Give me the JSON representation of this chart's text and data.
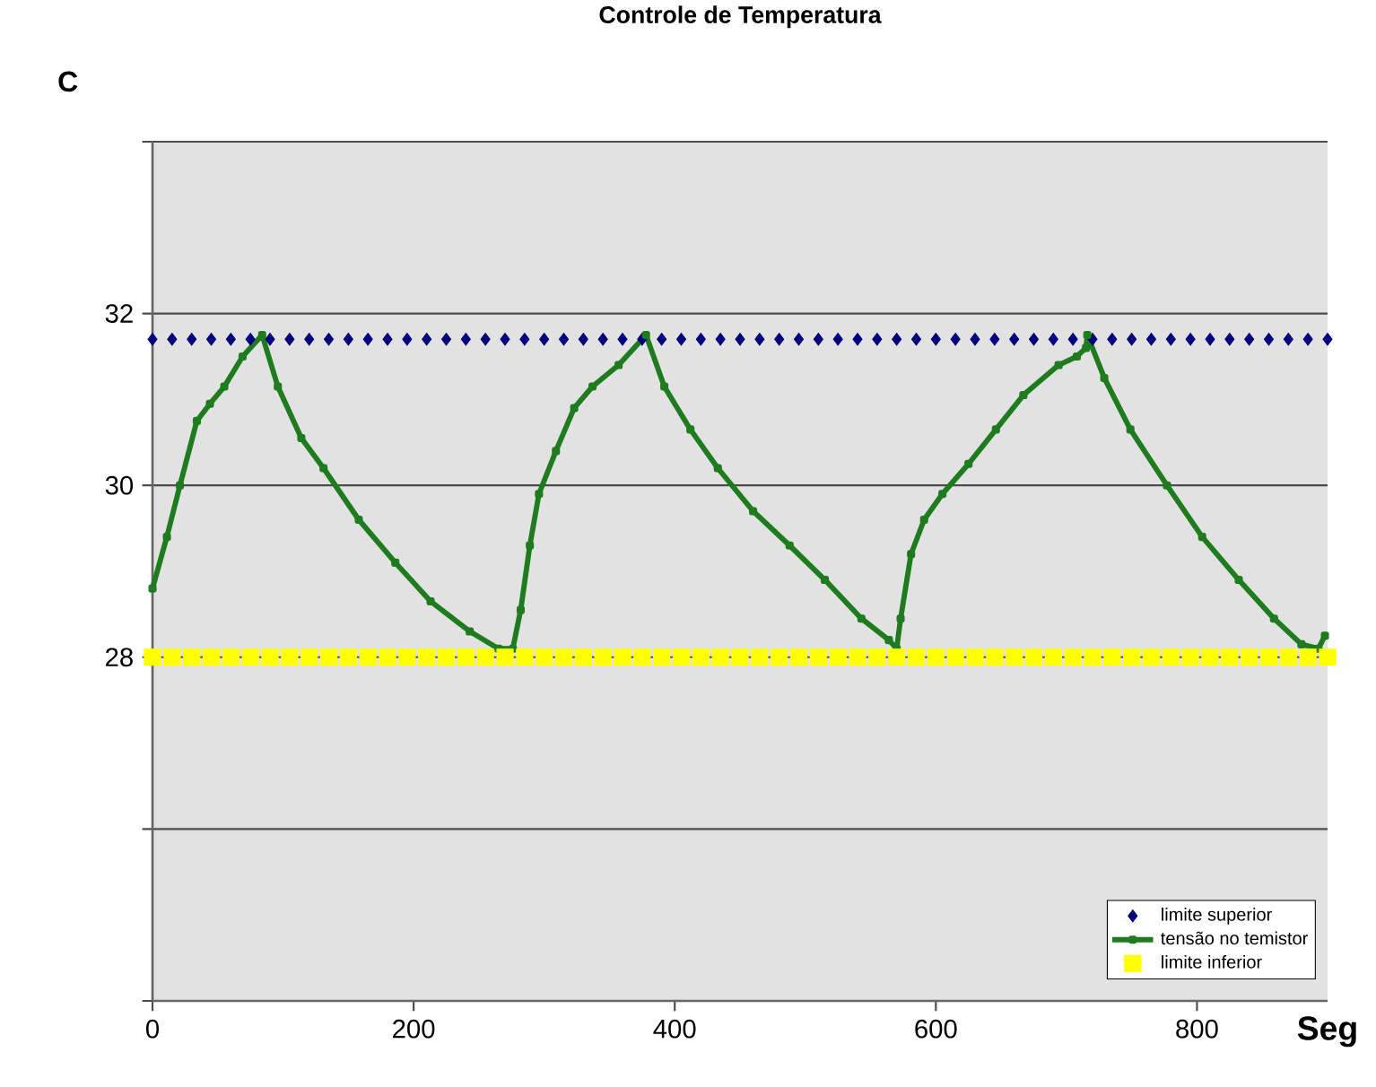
{
  "chart_data": {
    "type": "line",
    "title": "Controle de Temperatura",
    "xlabel": "Seg",
    "ylabel": "C",
    "xlim": [
      0,
      900
    ],
    "xticks": [
      0,
      200,
      400,
      600,
      800
    ],
    "ylim": [
      24,
      34
    ],
    "yticks": [
      {
        "value": 24,
        "label": null
      },
      {
        "value": 26,
        "label": null
      },
      28,
      30,
      32,
      {
        "value": 34,
        "label": null
      }
    ],
    "grid": "y",
    "legend": "bottom right",
    "series": [
      {
        "name": "limite superior",
        "type": "scatter",
        "marker": "diamond",
        "color": "#000080",
        "x": [
          0,
          15,
          30,
          45,
          60,
          75,
          90,
          105,
          120,
          135,
          150,
          165,
          180,
          195,
          210,
          225,
          240,
          255,
          270,
          285,
          300,
          315,
          330,
          345,
          360,
          375,
          390,
          405,
          420,
          435,
          450,
          465,
          480,
          495,
          510,
          525,
          540,
          555,
          570,
          585,
          600,
          615,
          630,
          645,
          660,
          675,
          690,
          705,
          720,
          735,
          750,
          765,
          780,
          795,
          810,
          825,
          840,
          855,
          870,
          885,
          900
        ],
        "values": [
          31.7,
          31.7,
          31.7,
          31.7,
          31.7,
          31.7,
          31.7,
          31.7,
          31.7,
          31.7,
          31.7,
          31.7,
          31.7,
          31.7,
          31.7,
          31.7,
          31.7,
          31.7,
          31.7,
          31.7,
          31.7,
          31.7,
          31.7,
          31.7,
          31.7,
          31.7,
          31.7,
          31.7,
          31.7,
          31.7,
          31.7,
          31.7,
          31.7,
          31.7,
          31.7,
          31.7,
          31.7,
          31.7,
          31.7,
          31.7,
          31.7,
          31.7,
          31.7,
          31.7,
          31.7,
          31.7,
          31.7,
          31.7,
          31.7,
          31.7,
          31.7,
          31.7,
          31.7,
          31.7,
          31.7,
          31.7,
          31.7,
          31.7,
          31.7,
          31.7,
          31.7
        ]
      },
      {
        "name": "tensão no temistor",
        "marker": "square",
        "color": "#1e7b1e",
        "x": [
          0,
          11,
          21,
          34,
          44,
          55,
          69,
          84,
          96,
          114,
          131,
          158,
          186,
          213,
          243,
          265,
          276,
          282,
          289,
          296,
          309,
          323,
          337,
          357,
          378,
          392,
          412,
          433,
          460,
          488,
          515,
          543,
          564,
          570,
          573,
          581,
          591,
          605,
          625,
          646,
          667,
          694,
          708,
          715,
          716,
          729,
          749,
          777,
          804,
          832,
          859,
          880,
          893,
          898
        ],
        "values": [
          28.8,
          29.4,
          30.0,
          30.75,
          30.95,
          31.15,
          31.5,
          31.75,
          31.15,
          30.55,
          30.2,
          29.6,
          29.1,
          28.65,
          28.3,
          28.1,
          28.1,
          28.55,
          29.3,
          29.9,
          30.4,
          30.9,
          31.15,
          31.4,
          31.75,
          31.15,
          30.65,
          30.2,
          29.7,
          29.3,
          28.9,
          28.45,
          28.2,
          28.1,
          28.45,
          29.2,
          29.6,
          29.9,
          30.25,
          30.65,
          31.05,
          31.4,
          31.5,
          31.6,
          31.75,
          31.25,
          30.65,
          30.0,
          29.4,
          28.9,
          28.45,
          28.15,
          28.1,
          28.25
        ]
      },
      {
        "name": "limite inferior",
        "type": "scatter",
        "marker": "square",
        "color": "#ffff00",
        "x": [
          0,
          15,
          30,
          45,
          60,
          75,
          90,
          105,
          120,
          135,
          150,
          165,
          180,
          195,
          210,
          225,
          240,
          255,
          270,
          285,
          300,
          315,
          330,
          345,
          360,
          375,
          390,
          405,
          420,
          435,
          450,
          465,
          480,
          495,
          510,
          525,
          540,
          555,
          570,
          585,
          600,
          615,
          630,
          645,
          660,
          675,
          690,
          705,
          720,
          735,
          750,
          765,
          780,
          795,
          810,
          825,
          840,
          855,
          870,
          885,
          900
        ],
        "values": [
          28,
          28,
          28,
          28,
          28,
          28,
          28,
          28,
          28,
          28,
          28,
          28,
          28,
          28,
          28,
          28,
          28,
          28,
          28,
          28,
          28,
          28,
          28,
          28,
          28,
          28,
          28,
          28,
          28,
          28,
          28,
          28,
          28,
          28,
          28,
          28,
          28,
          28,
          28,
          28,
          28,
          28,
          28,
          28,
          28,
          28,
          28,
          28,
          28,
          28,
          28,
          28,
          28,
          28,
          28,
          28,
          28,
          28,
          28,
          28,
          28
        ]
      }
    ]
  }
}
